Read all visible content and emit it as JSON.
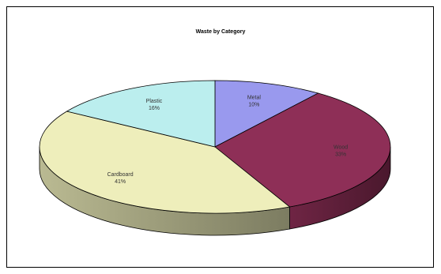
{
  "chart_data": {
    "type": "pie",
    "title": "Waste by Category",
    "categories": [
      "Metal",
      "Wood",
      "Cardboard",
      "Plastic"
    ],
    "values": [
      10,
      33,
      41,
      16
    ],
    "value_labels": [
      "10%",
      "33%",
      "41%",
      "16%"
    ],
    "colors": {
      "Metal": "#9999ee",
      "Wood": "#8e2f57",
      "Cardboard": "#eeeebb",
      "Plastic": "#bbeeee"
    },
    "legend": "none",
    "three_d": true,
    "start": "12 o'clock, clockwise"
  }
}
